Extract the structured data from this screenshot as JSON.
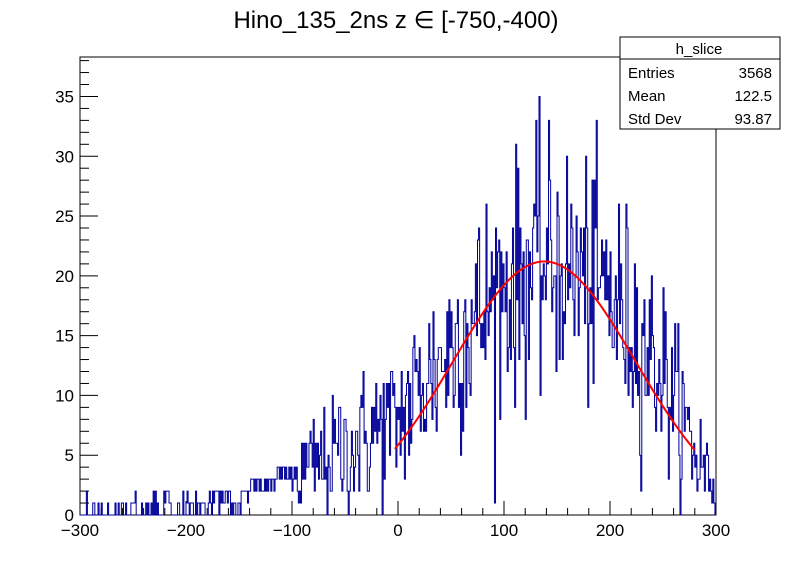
{
  "chart_data": {
    "type": "histogram",
    "title": "Hino_135_2ns z  ∈ [-750,-400)",
    "xlabel": "",
    "ylabel": "",
    "xlim": [
      -300,
      300
    ],
    "ylim": [
      0,
      38.3
    ],
    "x_ticks": [
      -300,
      -200,
      -100,
      0,
      100,
      200,
      300
    ],
    "y_ticks": [
      0,
      5,
      10,
      15,
      20,
      25,
      30,
      35
    ],
    "x_tick_labels": [
      "−300",
      "−200",
      "−100",
      "0",
      "100",
      "200",
      "300"
    ],
    "y_tick_labels": [
      "0",
      "5",
      "10",
      "15",
      "20",
      "25",
      "30",
      "35"
    ],
    "bin_width": 1,
    "histogram_color": "#000099",
    "fit_color": "#ff0000",
    "stats_box": {
      "name": "h_slice",
      "entries_label": "Entries",
      "entries": "3568",
      "mean_label": "Mean",
      "mean": "122.5",
      "stddev_label": "Std Dev",
      "stddev": "93.87"
    },
    "bin_envelope": {
      "x": [
        -300,
        -150,
        -100,
        -50,
        0,
        50,
        100,
        140,
        150,
        200,
        250,
        280,
        300
      ],
      "y": [
        0.2,
        0.8,
        3,
        5.5,
        8,
        14,
        19,
        21.2,
        21,
        18.5,
        12,
        5,
        3
      ]
    },
    "fit": {
      "type": "gaussian",
      "amplitude": 21.2,
      "mean": 138,
      "sigma": 86,
      "x_range": [
        -3,
        280
      ]
    }
  }
}
